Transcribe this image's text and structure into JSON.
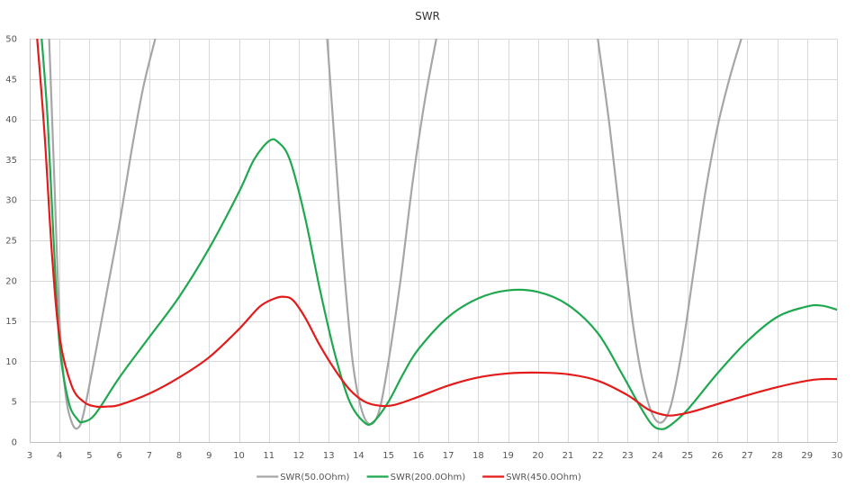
{
  "chart_data": {
    "type": "line",
    "title": "SWR",
    "xlabel": "",
    "ylabel": "",
    "xlim": [
      3,
      30
    ],
    "ylim": [
      0,
      50
    ],
    "x_ticks": [
      "3",
      "4",
      "5",
      "6",
      "7",
      "8",
      "9",
      "10",
      "11",
      "12",
      "13",
      "14",
      "15",
      "16",
      "17",
      "18",
      "19",
      "20",
      "21",
      "22",
      "23",
      "24",
      "25",
      "26",
      "27",
      "28",
      "29",
      "30"
    ],
    "y_ticks": [
      "0",
      "5",
      "10",
      "15",
      "20",
      "25",
      "30",
      "35",
      "40",
      "45",
      "50"
    ],
    "grid": true,
    "legend_position": "bottom",
    "series": [
      {
        "name": "SWR(50.0Ohm)",
        "color": "#a6a6a6",
        "points": [
          [
            3.65,
            50
          ],
          [
            3.8,
            35
          ],
          [
            4.0,
            15
          ],
          [
            4.2,
            6
          ],
          [
            4.4,
            2.5
          ],
          [
            4.6,
            1.7
          ],
          [
            4.8,
            3.5
          ],
          [
            5.2,
            11
          ],
          [
            5.6,
            19
          ],
          [
            6.0,
            27
          ],
          [
            6.4,
            36
          ],
          [
            6.8,
            44
          ],
          [
            7.2,
            50
          ],
          [
            12.95,
            50
          ],
          [
            13.2,
            37
          ],
          [
            13.5,
            22
          ],
          [
            13.8,
            10
          ],
          [
            14.1,
            4
          ],
          [
            14.4,
            2.2
          ],
          [
            14.7,
            4
          ],
          [
            15.0,
            10
          ],
          [
            15.4,
            20
          ],
          [
            15.8,
            32
          ],
          [
            16.2,
            42
          ],
          [
            16.6,
            50
          ],
          [
            22.0,
            50
          ],
          [
            22.4,
            39
          ],
          [
            22.8,
            26
          ],
          [
            23.2,
            14
          ],
          [
            23.6,
            6
          ],
          [
            24.0,
            2.5
          ],
          [
            24.4,
            4
          ],
          [
            24.8,
            11
          ],
          [
            25.2,
            21
          ],
          [
            25.6,
            31
          ],
          [
            26.0,
            39
          ],
          [
            26.4,
            45
          ],
          [
            26.8,
            50
          ]
        ]
      },
      {
        "name": "SWR(200.0Ohm)",
        "color": "#1fa84f",
        "points": [
          [
            3.4,
            50
          ],
          [
            3.6,
            40
          ],
          [
            3.8,
            25
          ],
          [
            4.0,
            12
          ],
          [
            4.3,
            5
          ],
          [
            4.6,
            2.8
          ],
          [
            4.8,
            2.5
          ],
          [
            5.2,
            3.5
          ],
          [
            6.0,
            8
          ],
          [
            7.0,
            13
          ],
          [
            8.0,
            18
          ],
          [
            9.0,
            24
          ],
          [
            10.0,
            31
          ],
          [
            10.5,
            35
          ],
          [
            11.0,
            37.3
          ],
          [
            11.3,
            37.2
          ],
          [
            11.7,
            35
          ],
          [
            12.2,
            28
          ],
          [
            12.7,
            19
          ],
          [
            13.2,
            11
          ],
          [
            13.7,
            5
          ],
          [
            14.2,
            2.4
          ],
          [
            14.5,
            2.5
          ],
          [
            15.0,
            5
          ],
          [
            15.5,
            8.5
          ],
          [
            16.0,
            11.5
          ],
          [
            17.0,
            15.5
          ],
          [
            18.0,
            17.8
          ],
          [
            19.0,
            18.8
          ],
          [
            20.0,
            18.6
          ],
          [
            21.0,
            17
          ],
          [
            22.0,
            13.5
          ],
          [
            22.8,
            8.5
          ],
          [
            23.4,
            4.5
          ],
          [
            23.8,
            2.2
          ],
          [
            24.1,
            1.6
          ],
          [
            24.4,
            2
          ],
          [
            25.0,
            4
          ],
          [
            26.0,
            8.5
          ],
          [
            27.0,
            12.5
          ],
          [
            28.0,
            15.5
          ],
          [
            29.0,
            16.8
          ],
          [
            29.5,
            16.9
          ],
          [
            30.0,
            16.4
          ]
        ]
      },
      {
        "name": "SWR(450.0Ohm)",
        "color": "#e31b1b",
        "points": [
          [
            3.25,
            50
          ],
          [
            3.5,
            38
          ],
          [
            3.75,
            23
          ],
          [
            4.0,
            13
          ],
          [
            4.4,
            7
          ],
          [
            4.8,
            5
          ],
          [
            5.2,
            4.4
          ],
          [
            5.6,
            4.4
          ],
          [
            6.0,
            4.6
          ],
          [
            7.0,
            6
          ],
          [
            8.0,
            8
          ],
          [
            9.0,
            10.5
          ],
          [
            10.0,
            14
          ],
          [
            10.7,
            16.8
          ],
          [
            11.2,
            17.8
          ],
          [
            11.5,
            18
          ],
          [
            11.8,
            17.6
          ],
          [
            12.2,
            15.5
          ],
          [
            12.7,
            12
          ],
          [
            13.2,
            9
          ],
          [
            13.7,
            6.5
          ],
          [
            14.2,
            5
          ],
          [
            14.7,
            4.5
          ],
          [
            15.2,
            4.6
          ],
          [
            16.0,
            5.6
          ],
          [
            17.0,
            7
          ],
          [
            18.0,
            8
          ],
          [
            19.0,
            8.5
          ],
          [
            20.0,
            8.6
          ],
          [
            21.0,
            8.4
          ],
          [
            22.0,
            7.6
          ],
          [
            23.0,
            5.8
          ],
          [
            23.7,
            4
          ],
          [
            24.3,
            3.3
          ],
          [
            24.7,
            3.4
          ],
          [
            25.2,
            3.8
          ],
          [
            26.0,
            4.7
          ],
          [
            27.0,
            5.8
          ],
          [
            28.0,
            6.8
          ],
          [
            29.0,
            7.6
          ],
          [
            29.5,
            7.8
          ],
          [
            30.0,
            7.8
          ]
        ]
      }
    ]
  }
}
